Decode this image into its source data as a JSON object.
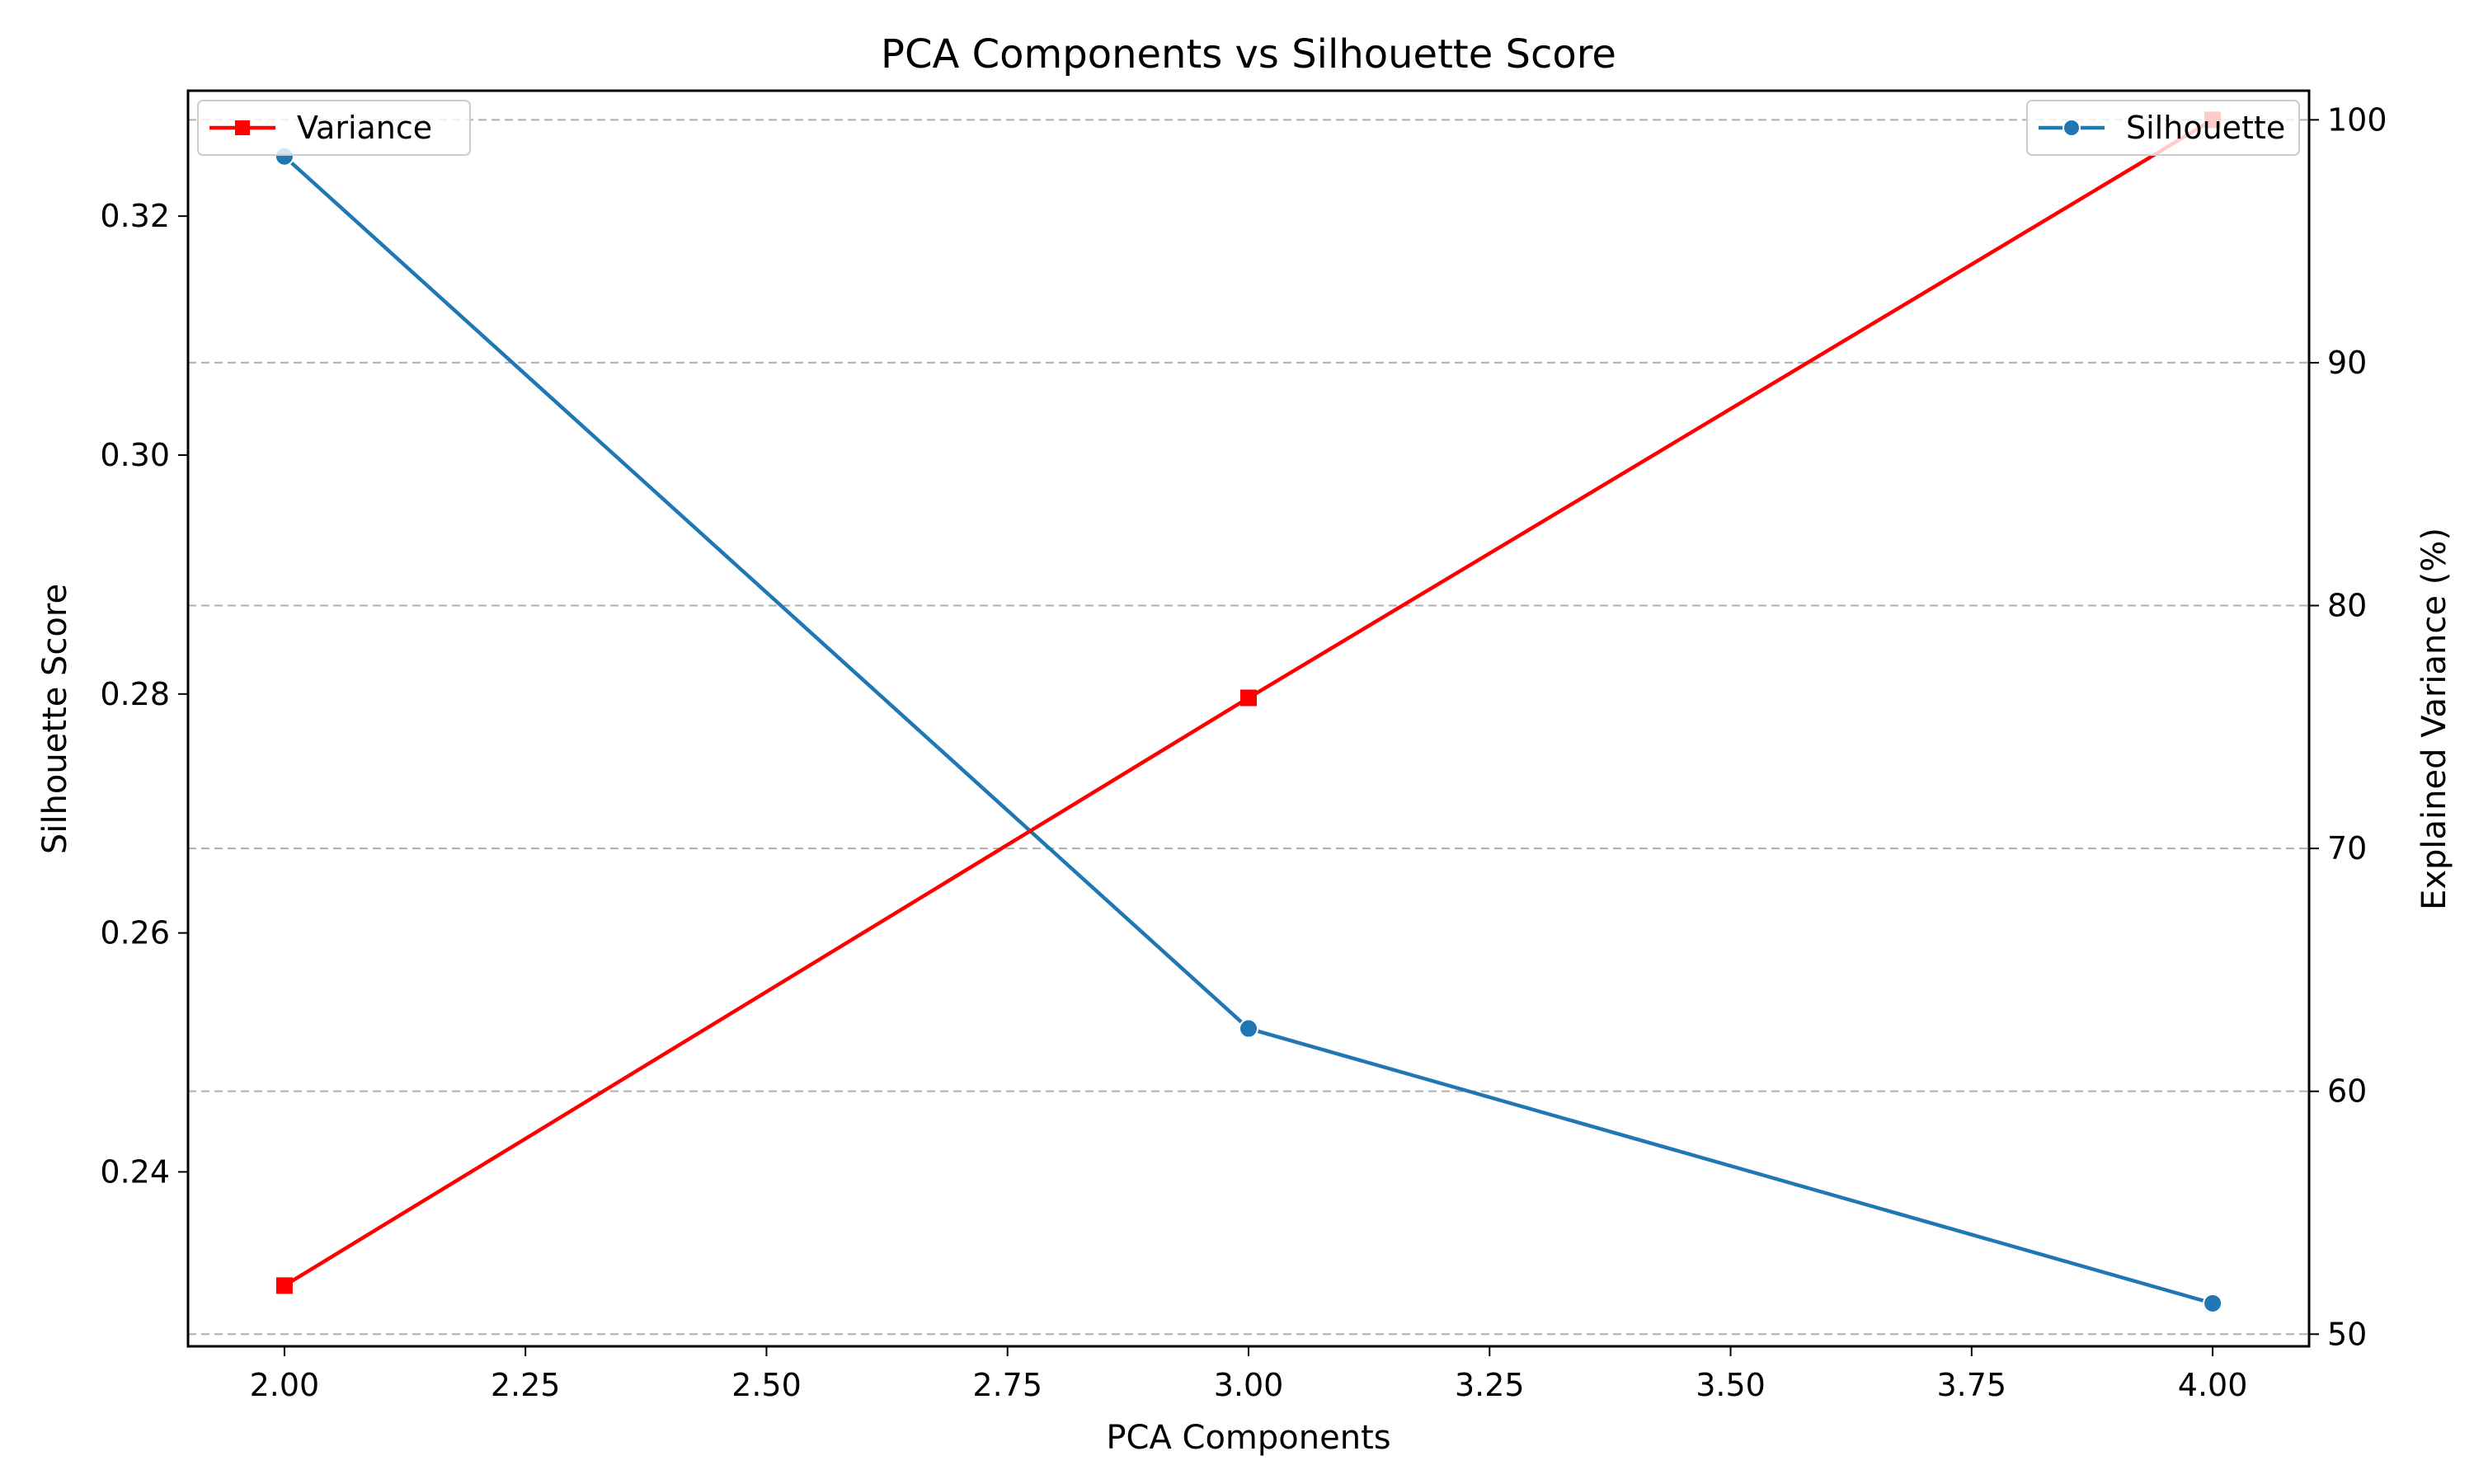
{
  "chart_data": {
    "type": "line",
    "title": "PCA Components vs Silhouette Score",
    "xlabel": "PCA Components",
    "ylabel": "Silhouette Score",
    "y2label": "Explained Variance (%)",
    "x": [
      2.0,
      3.0,
      4.0
    ],
    "xlim": [
      1.9,
      4.1
    ],
    "ylim": [
      0.2254,
      0.3305
    ],
    "y2lim": [
      49.5,
      101.2
    ],
    "xticks": [
      "2.00",
      "2.25",
      "2.50",
      "2.75",
      "3.00",
      "3.25",
      "3.50",
      "3.75",
      "4.00"
    ],
    "xtick_values": [
      2.0,
      2.25,
      2.5,
      2.75,
      3.0,
      3.25,
      3.5,
      3.75,
      4.0
    ],
    "yticks": [
      "0.24",
      "0.26",
      "0.28",
      "0.30",
      "0.32"
    ],
    "ytick_values": [
      0.24,
      0.26,
      0.28,
      0.3,
      0.32
    ],
    "y2ticks": [
      "50",
      "60",
      "70",
      "80",
      "90",
      "100"
    ],
    "y2tick_values": [
      50,
      60,
      70,
      80,
      90,
      100
    ],
    "grid": "horizontal dashed (right axis)",
    "series": [
      {
        "name": "Silhouette",
        "axis": "left",
        "values": [
          0.325,
          0.252,
          0.229
        ],
        "color": "#1f77b4",
        "marker": "circle",
        "legend_position": "upper-right"
      },
      {
        "name": "Variance",
        "axis": "right",
        "values": [
          52.0,
          76.2,
          100.0
        ],
        "color": "#ff0000",
        "marker": "square",
        "legend_position": "upper-left"
      }
    ]
  }
}
